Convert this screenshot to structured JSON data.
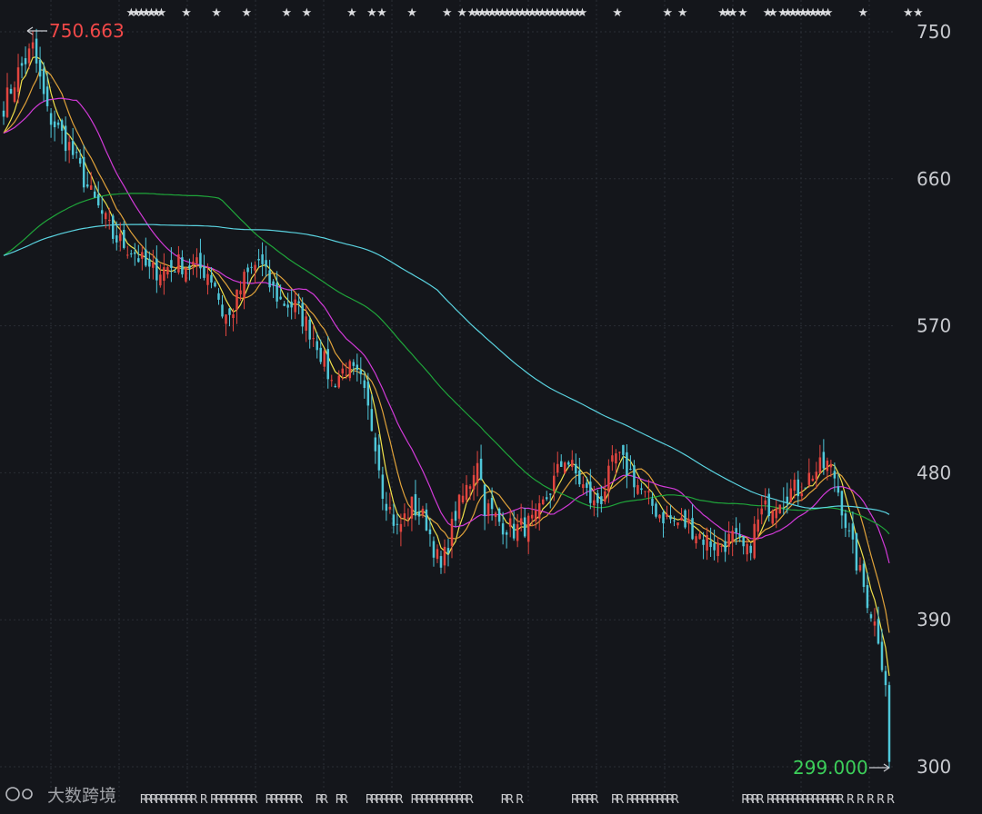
{
  "chart_data": {
    "type": "candlestick",
    "ylim": [
      295,
      760
    ],
    "y_ticks": [
      750,
      660,
      570,
      480,
      390,
      300
    ],
    "y_tick_labels": [
      "750",
      "660",
      "570",
      "480",
      "390",
      "300"
    ],
    "grid": true,
    "max_label": "750.663",
    "min_label": "299.000",
    "max_value": 750.663,
    "min_value": 299.0,
    "candle_count": 244,
    "anchors": [
      [
        0,
        705
      ],
      [
        4,
        725
      ],
      [
        8,
        740
      ],
      [
        12,
        700
      ],
      [
        18,
        680
      ],
      [
        24,
        650
      ],
      [
        30,
        625
      ],
      [
        36,
        615
      ],
      [
        40,
        603
      ],
      [
        44,
        605
      ],
      [
        48,
        608
      ],
      [
        52,
        607
      ],
      [
        56,
        603
      ],
      [
        58,
        596
      ],
      [
        60,
        578
      ],
      [
        62,
        575
      ],
      [
        66,
        598
      ],
      [
        70,
        610
      ],
      [
        73,
        595
      ],
      [
        76,
        585
      ],
      [
        80,
        582
      ],
      [
        82,
        575
      ],
      [
        86,
        560
      ],
      [
        90,
        535
      ],
      [
        94,
        545
      ],
      [
        98,
        535
      ],
      [
        102,
        500
      ],
      [
        104,
        470
      ],
      [
        108,
        445
      ],
      [
        112,
        460
      ],
      [
        116,
        450
      ],
      [
        120,
        420
      ],
      [
        124,
        455
      ],
      [
        128,
        475
      ],
      [
        130,
        490
      ],
      [
        132,
        460
      ],
      [
        136,
        450
      ],
      [
        140,
        445
      ],
      [
        146,
        450
      ],
      [
        150,
        470
      ],
      [
        154,
        490
      ],
      [
        158,
        475
      ],
      [
        162,
        460
      ],
      [
        164,
        465
      ],
      [
        168,
        490
      ],
      [
        172,
        480
      ],
      [
        176,
        465
      ],
      [
        180,
        455
      ],
      [
        184,
        450
      ],
      [
        188,
        448
      ],
      [
        192,
        440
      ],
      [
        196,
        435
      ],
      [
        200,
        440
      ],
      [
        204,
        430
      ],
      [
        206,
        445
      ],
      [
        208,
        455
      ],
      [
        210,
        460
      ],
      [
        214,
        468
      ],
      [
        218,
        470
      ],
      [
        222,
        480
      ],
      [
        226,
        485
      ],
      [
        228,
        478
      ],
      [
        230,
        460
      ],
      [
        232,
        440
      ],
      [
        234,
        425
      ],
      [
        236,
        410
      ],
      [
        238,
        395
      ],
      [
        240,
        380
      ],
      [
        242,
        350
      ],
      [
        243,
        305
      ]
    ],
    "series": [
      {
        "period": 5,
        "color": "#f0e04a"
      },
      {
        "period": 10,
        "color": "#e0a23a"
      },
      {
        "period": 20,
        "color": "#d23ad8"
      },
      {
        "period": 60,
        "color": "#1fa53a"
      },
      {
        "period": 120,
        "color": "#5ad3e0"
      }
    ],
    "up_color": "#e2453f",
    "down_color": "#4fc7d9",
    "max_label_color": "#f04848",
    "min_label_color": "#3ccf5a"
  },
  "watermark": "大数跨境",
  "markers": {
    "top_symbol": "★",
    "top_positions": [
      3,
      4,
      5,
      6,
      7,
      8,
      9,
      14,
      20,
      26,
      34,
      38,
      47,
      51,
      53,
      59,
      66,
      69,
      71,
      72,
      73,
      74,
      75,
      76,
      77,
      78,
      79,
      80,
      81,
      82,
      83,
      84,
      85,
      86,
      87,
      88,
      89,
      90,
      91,
      92,
      93,
      100,
      110,
      113,
      121,
      122,
      123,
      125,
      130,
      131,
      133,
      134,
      135,
      136,
      137,
      138,
      139,
      140,
      141,
      142,
      149,
      158,
      160
    ],
    "top_highlight": [
      26
    ],
    "bottom_symbol": "R",
    "bottom_positions": [
      13,
      14,
      15,
      16,
      17,
      18,
      19,
      20,
      21,
      22,
      23,
      25,
      27,
      28,
      29,
      30,
      31,
      32,
      33,
      34,
      35,
      38,
      39,
      40,
      41,
      42,
      43,
      44,
      48,
      49,
      52,
      53,
      58,
      59,
      60,
      61,
      62,
      63,
      64,
      67,
      68,
      69,
      70,
      71,
      72,
      73,
      74,
      75,
      76,
      77,
      78,
      85,
      86,
      88,
      99,
      100,
      101,
      102,
      103,
      107,
      108,
      110,
      111,
      112,
      113,
      114,
      115,
      116,
      117,
      118,
      119,
      133,
      134,
      135,
      136,
      138,
      139,
      140,
      141,
      142,
      143,
      144,
      145,
      146,
      147,
      148,
      149,
      150,
      151,
      152,
      154,
      156,
      158,
      160,
      162
    ]
  }
}
